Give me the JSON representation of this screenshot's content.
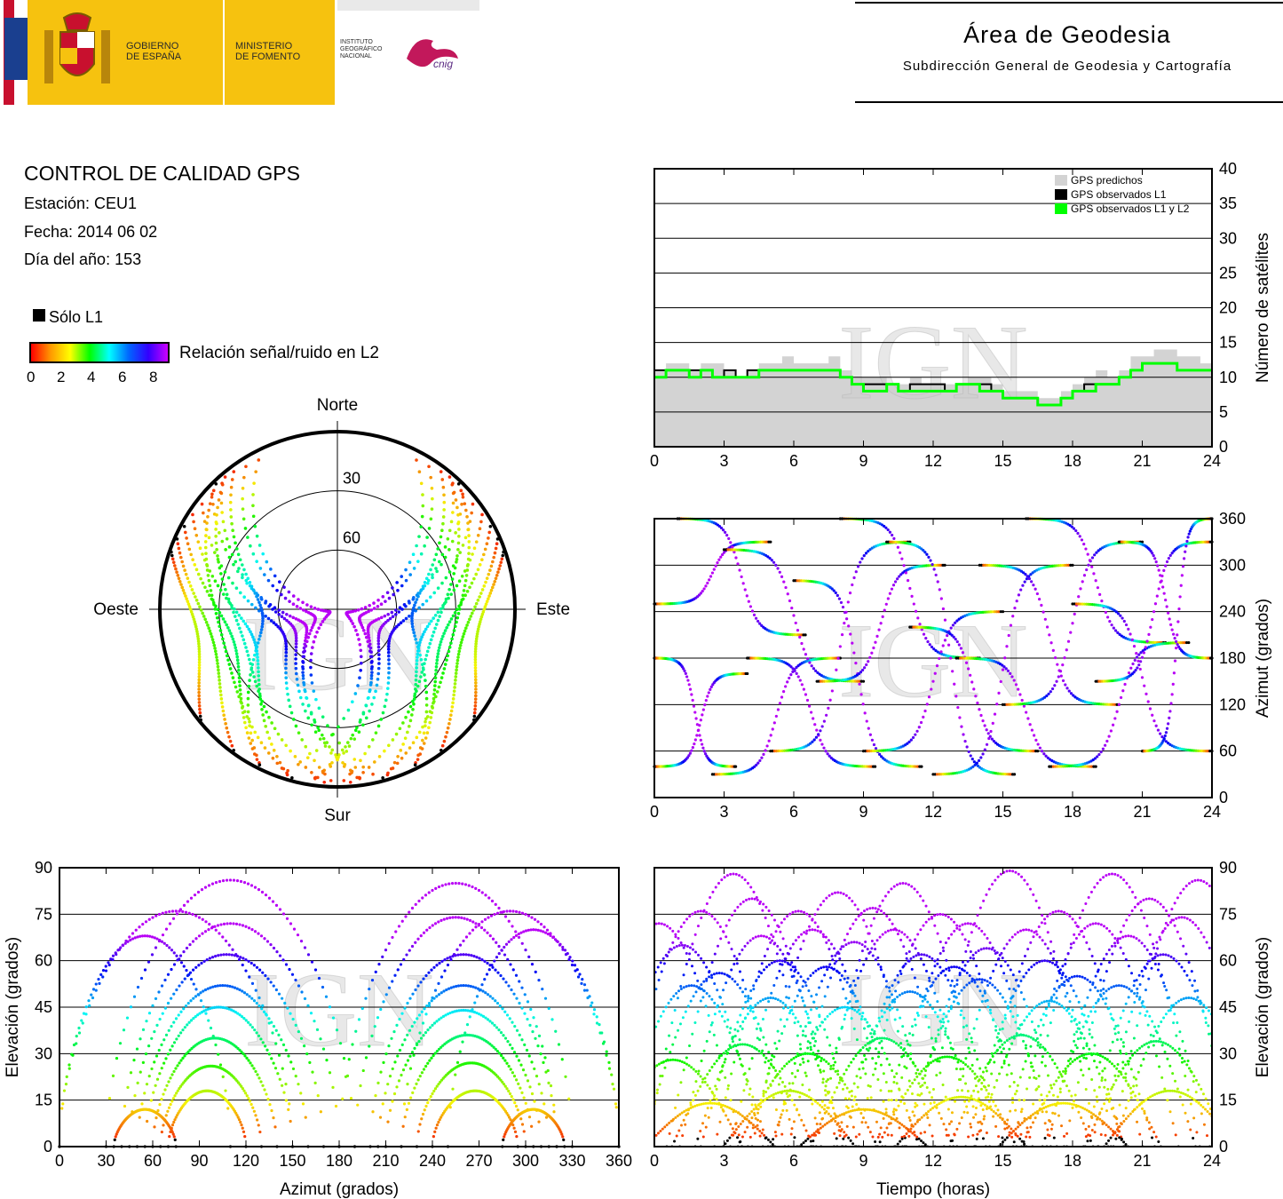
{
  "header": {
    "gobierno_line1": "GOBIERNO",
    "gobierno_line2": "DE ESPAÑA",
    "ministerio_line1": "MINISTERIO",
    "ministerio_line2": "DE FOMENTO",
    "ign_line1": "INSTITUTO",
    "ign_line2": "GEOGRÁFICO",
    "ign_line3": "NACIONAL",
    "cnig_text": "cnig",
    "area_title": "Área de Geodesia",
    "area_subtitle": "Subdirección General de Geodesia y Cartografía",
    "brand_yellow": "#f6c20f",
    "brand_red": "#c8102e"
  },
  "info": {
    "title": "CONTROL DE CALIDAD GPS",
    "station": "Estación: CEU1",
    "date": "Fecha: 2014 06 02",
    "doy": "Día del año: 153"
  },
  "legend": {
    "only_l1": "Sólo L1",
    "snr_label": "Relación señal/ruido en L2",
    "snr_ticks": [
      "0",
      "2",
      "4",
      "6",
      "8"
    ]
  },
  "watermark": "IGN",
  "chart_data": [
    {
      "id": "satellites",
      "type": "area",
      "ylabel": "Número de satélites",
      "xlim": [
        0,
        24
      ],
      "ylim": [
        0,
        40
      ],
      "xticks": [
        0,
        3,
        6,
        9,
        12,
        15,
        18,
        21,
        24
      ],
      "yticks": [
        0,
        5,
        10,
        15,
        20,
        25,
        30,
        35,
        40
      ],
      "legend_position": "top-right",
      "x": [
        0,
        0.5,
        1,
        1.5,
        2,
        2.5,
        3,
        3.5,
        4,
        4.5,
        5,
        5.5,
        6,
        6.5,
        7,
        7.5,
        8,
        8.5,
        9,
        9.5,
        10,
        10.5,
        11,
        11.5,
        12,
        12.5,
        13,
        13.5,
        14,
        14.5,
        15,
        15.5,
        16,
        16.5,
        17,
        17.5,
        18,
        18.5,
        19,
        19.5,
        20,
        20.5,
        21,
        21.5,
        22,
        22.5,
        23,
        23.5,
        24
      ],
      "series": [
        {
          "name": "GPS predichos",
          "color": "#d3d3d3",
          "values": [
            11,
            12,
            12,
            11,
            12,
            12,
            11,
            10,
            11,
            12,
            12,
            13,
            12,
            12,
            12,
            13,
            11,
            10,
            10,
            10,
            9,
            9,
            10,
            9,
            9,
            9,
            9,
            10,
            10,
            9,
            8,
            8,
            8,
            7,
            7,
            8,
            9,
            10,
            11,
            10,
            11,
            13,
            13,
            14,
            14,
            13,
            13,
            12,
            12
          ]
        },
        {
          "name": "GPS observados L1",
          "color": "#000000",
          "values": [
            11,
            11,
            11,
            11,
            11,
            10,
            11,
            10,
            11,
            11,
            11,
            11,
            11,
            11,
            11,
            11,
            10,
            9,
            9,
            9,
            9,
            8,
            9,
            9,
            9,
            8,
            9,
            9,
            9,
            8,
            7,
            7,
            7,
            6,
            6,
            7,
            8,
            9,
            9,
            9,
            10,
            11,
            12,
            12,
            12,
            11,
            11,
            11,
            11
          ]
        },
        {
          "name": "GPS observados L1 y L2",
          "color": "#00ff00",
          "values": [
            10,
            11,
            11,
            10,
            11,
            10,
            10,
            10,
            10,
            11,
            11,
            11,
            11,
            11,
            11,
            11,
            10,
            9,
            8,
            8,
            9,
            8,
            8,
            8,
            8,
            8,
            9,
            9,
            8,
            8,
            7,
            7,
            7,
            6,
            6,
            7,
            8,
            8,
            9,
            9,
            10,
            11,
            12,
            12,
            12,
            11,
            11,
            11,
            11
          ]
        }
      ]
    },
    {
      "id": "skyplot",
      "type": "scatter",
      "directions": {
        "north": "Norte",
        "south": "Sur",
        "east": "Este",
        "west": "Oeste"
      },
      "rings": [
        "30",
        "60"
      ],
      "tracks": [
        {
          "az0": 30,
          "elmax": 78,
          "span": 160
        },
        {
          "az0": 330,
          "elmax": 78,
          "span": -160
        },
        {
          "az0": 40,
          "elmax": 66,
          "span": 150
        },
        {
          "az0": 320,
          "elmax": 66,
          "span": -150
        },
        {
          "az0": 45,
          "elmax": 72,
          "span": 145
        },
        {
          "az0": 315,
          "elmax": 72,
          "span": -145
        },
        {
          "az0": 50,
          "elmax": 60,
          "span": 130
        },
        {
          "az0": 310,
          "elmax": 60,
          "span": -130
        },
        {
          "az0": 35,
          "elmax": 52,
          "span": 120
        },
        {
          "az0": 325,
          "elmax": 52,
          "span": -120
        },
        {
          "az0": 55,
          "elmax": 45,
          "span": 110
        },
        {
          "az0": 305,
          "elmax": 45,
          "span": -110
        },
        {
          "az0": 60,
          "elmax": 35,
          "span": 95
        },
        {
          "az0": 300,
          "elmax": 35,
          "span": -95
        },
        {
          "az0": 65,
          "elmax": 25,
          "span": 80
        },
        {
          "az0": 295,
          "elmax": 25,
          "span": -80
        },
        {
          "az0": 25,
          "elmax": 85,
          "span": 175
        },
        {
          "az0": 335,
          "elmax": 86,
          "span": -170
        },
        {
          "az0": 70,
          "elmax": 18,
          "span": 60
        },
        {
          "az0": 290,
          "elmax": 18,
          "span": -60
        },
        {
          "az0": 38,
          "elmax": 40,
          "span": 140
        },
        {
          "az0": 322,
          "elmax": 40,
          "span": -140
        },
        {
          "az0": 42,
          "elmax": 30,
          "span": 125
        },
        {
          "az0": 318,
          "elmax": 30,
          "span": -125
        }
      ]
    },
    {
      "id": "azimuth-time",
      "type": "scatter",
      "ylabel": "Azimut (grados)",
      "xlim": [
        0,
        24
      ],
      "ylim": [
        0,
        360
      ],
      "xticks": [
        0,
        3,
        6,
        9,
        12,
        15,
        18,
        21,
        24
      ],
      "yticks": [
        0,
        60,
        120,
        180,
        240,
        300,
        360
      ],
      "tracks": [
        {
          "t0": 0,
          "t1": 5,
          "a0": 250,
          "a1": 330
        },
        {
          "t0": 1,
          "t1": 6.5,
          "a0": 360,
          "a1": 210
        },
        {
          "t0": 2.5,
          "t1": 8,
          "a0": 30,
          "a1": 180
        },
        {
          "t0": 3,
          "t1": 9,
          "a0": 320,
          "a1": 150
        },
        {
          "t0": 4,
          "t1": 9.5,
          "a0": 180,
          "a1": 40
        },
        {
          "t0": 5,
          "t1": 11,
          "a0": 60,
          "a1": 330
        },
        {
          "t0": 6,
          "t1": 11.5,
          "a0": 280,
          "a1": 40
        },
        {
          "t0": 7,
          "t1": 12.5,
          "a0": 150,
          "a1": 300
        },
        {
          "t0": 8,
          "t1": 14,
          "a0": 360,
          "a1": 180
        },
        {
          "t0": 9,
          "t1": 15,
          "a0": 60,
          "a1": 240
        },
        {
          "t0": 10,
          "t1": 15.5,
          "a0": 330,
          "a1": 30
        },
        {
          "t0": 11,
          "t1": 16.5,
          "a0": 220,
          "a1": 60
        },
        {
          "t0": 12,
          "t1": 18,
          "a0": 30,
          "a1": 300
        },
        {
          "t0": 13,
          "t1": 19,
          "a0": 180,
          "a1": 40
        },
        {
          "t0": 14,
          "t1": 20,
          "a0": 300,
          "a1": 120
        },
        {
          "t0": 15,
          "t1": 21,
          "a0": 120,
          "a1": 330
        },
        {
          "t0": 16,
          "t1": 22,
          "a0": 360,
          "a1": 200
        },
        {
          "t0": 17,
          "t1": 23,
          "a0": 40,
          "a1": 200
        },
        {
          "t0": 18,
          "t1": 24,
          "a0": 250,
          "a1": 60
        },
        {
          "t0": 19,
          "t1": 24,
          "a0": 150,
          "a1": 330
        },
        {
          "t0": 20,
          "t1": 24,
          "a0": 330,
          "a1": 180
        },
        {
          "t0": 21,
          "t1": 24,
          "a0": 60,
          "a1": 360
        },
        {
          "t0": 0,
          "t1": 3.5,
          "a0": 180,
          "a1": 40
        },
        {
          "t0": 0,
          "t1": 4,
          "a0": 40,
          "a1": 160
        }
      ]
    },
    {
      "id": "elevation-azimuth",
      "type": "scatter",
      "xlabel": "Azimut (grados)",
      "ylabel": "Elevación (grados)",
      "xlim": [
        0,
        360
      ],
      "ylim": [
        0,
        90
      ],
      "xticks": [
        0,
        30,
        60,
        90,
        120,
        150,
        180,
        210,
        240,
        270,
        300,
        330,
        360
      ],
      "yticks": [
        0,
        15,
        30,
        45,
        60,
        75,
        90
      ],
      "tracks": [
        {
          "a0": 30,
          "a1": 190,
          "elmax": 86
        },
        {
          "a0": 180,
          "a1": 330,
          "elmax": 85
        },
        {
          "a0": 40,
          "a1": 180,
          "elmax": 72
        },
        {
          "a0": 190,
          "a1": 320,
          "elmax": 74
        },
        {
          "a0": 45,
          "a1": 170,
          "elmax": 62
        },
        {
          "a0": 200,
          "a1": 320,
          "elmax": 62
        },
        {
          "a0": 50,
          "a1": 160,
          "elmax": 52
        },
        {
          "a0": 205,
          "a1": 315,
          "elmax": 52
        },
        {
          "a0": 55,
          "a1": 150,
          "elmax": 45
        },
        {
          "a0": 210,
          "a1": 310,
          "elmax": 44
        },
        {
          "a0": 60,
          "a1": 140,
          "elmax": 35
        },
        {
          "a0": 220,
          "a1": 305,
          "elmax": 36
        },
        {
          "a0": 65,
          "a1": 130,
          "elmax": 26
        },
        {
          "a0": 230,
          "a1": 300,
          "elmax": 27
        },
        {
          "a0": 70,
          "a1": 120,
          "elmax": 18
        },
        {
          "a0": 240,
          "a1": 295,
          "elmax": 18
        },
        {
          "a0": 0,
          "a1": 150,
          "elmax": 76
        },
        {
          "a0": 220,
          "a1": 360,
          "elmax": 76
        },
        {
          "a0": 0,
          "a1": 110,
          "elmax": 68
        },
        {
          "a0": 250,
          "a1": 360,
          "elmax": 70
        },
        {
          "a0": 35,
          "a1": 75,
          "elmax": 12
        },
        {
          "a0": 285,
          "a1": 325,
          "elmax": 12
        }
      ]
    },
    {
      "id": "elevation-time",
      "type": "line",
      "xlabel": "Tiempo (horas)",
      "ylabel": "Elevación (grados)",
      "xlim": [
        0,
        24
      ],
      "ylim": [
        0,
        90
      ],
      "xticks": [
        0,
        3,
        6,
        9,
        12,
        15,
        18,
        21,
        24
      ],
      "yticks": [
        0,
        15,
        30,
        45,
        60,
        75,
        90
      ],
      "passes": [
        {
          "tmax": 0.2,
          "elmax": 72
        },
        {
          "tmax": 1.2,
          "elmax": 65
        },
        {
          "tmax": 2.0,
          "elmax": 76
        },
        {
          "tmax": 2.8,
          "elmax": 56
        },
        {
          "tmax": 3.4,
          "elmax": 88
        },
        {
          "tmax": 4.2,
          "elmax": 80
        },
        {
          "tmax": 4.6,
          "elmax": 68
        },
        {
          "tmax": 5.4,
          "elmax": 60
        },
        {
          "tmax": 6.2,
          "elmax": 76
        },
        {
          "tmax": 6.8,
          "elmax": 70
        },
        {
          "tmax": 7.4,
          "elmax": 58
        },
        {
          "tmax": 7.9,
          "elmax": 82
        },
        {
          "tmax": 8.6,
          "elmax": 66
        },
        {
          "tmax": 9.4,
          "elmax": 77
        },
        {
          "tmax": 10.3,
          "elmax": 70
        },
        {
          "tmax": 10.7,
          "elmax": 85
        },
        {
          "tmax": 11.5,
          "elmax": 62
        },
        {
          "tmax": 12.3,
          "elmax": 75
        },
        {
          "tmax": 12.9,
          "elmax": 58
        },
        {
          "tmax": 13.5,
          "elmax": 72
        },
        {
          "tmax": 14.3,
          "elmax": 64
        },
        {
          "tmax": 15.3,
          "elmax": 89
        },
        {
          "tmax": 16.0,
          "elmax": 70
        },
        {
          "tmax": 16.8,
          "elmax": 60
        },
        {
          "tmax": 17.4,
          "elmax": 76
        },
        {
          "tmax": 18.2,
          "elmax": 55
        },
        {
          "tmax": 19.0,
          "elmax": 72
        },
        {
          "tmax": 19.7,
          "elmax": 88
        },
        {
          "tmax": 20.4,
          "elmax": 68
        },
        {
          "tmax": 21.3,
          "elmax": 80
        },
        {
          "tmax": 21.9,
          "elmax": 62
        },
        {
          "tmax": 22.7,
          "elmax": 74
        },
        {
          "tmax": 23.4,
          "elmax": 86
        },
        {
          "tmax": 1.6,
          "elmax": 52
        },
        {
          "tmax": 5.0,
          "elmax": 48
        },
        {
          "tmax": 8.2,
          "elmax": 45
        },
        {
          "tmax": 11.0,
          "elmax": 50
        },
        {
          "tmax": 14.0,
          "elmax": 54
        },
        {
          "tmax": 17.0,
          "elmax": 47
        },
        {
          "tmax": 20.0,
          "elmax": 52
        },
        {
          "tmax": 23.0,
          "elmax": 48
        },
        {
          "tmax": 0.8,
          "elmax": 28
        },
        {
          "tmax": 3.8,
          "elmax": 33
        },
        {
          "tmax": 6.6,
          "elmax": 30
        },
        {
          "tmax": 9.8,
          "elmax": 35
        },
        {
          "tmax": 12.6,
          "elmax": 29
        },
        {
          "tmax": 15.8,
          "elmax": 36
        },
        {
          "tmax": 18.8,
          "elmax": 30
        },
        {
          "tmax": 21.6,
          "elmax": 34
        },
        {
          "tmax": 2.4,
          "elmax": 14
        },
        {
          "tmax": 5.8,
          "elmax": 18
        },
        {
          "tmax": 9.0,
          "elmax": 12
        },
        {
          "tmax": 13.2,
          "elmax": 16
        },
        {
          "tmax": 17.6,
          "elmax": 14
        },
        {
          "tmax": 22.2,
          "elmax": 18
        }
      ]
    }
  ]
}
